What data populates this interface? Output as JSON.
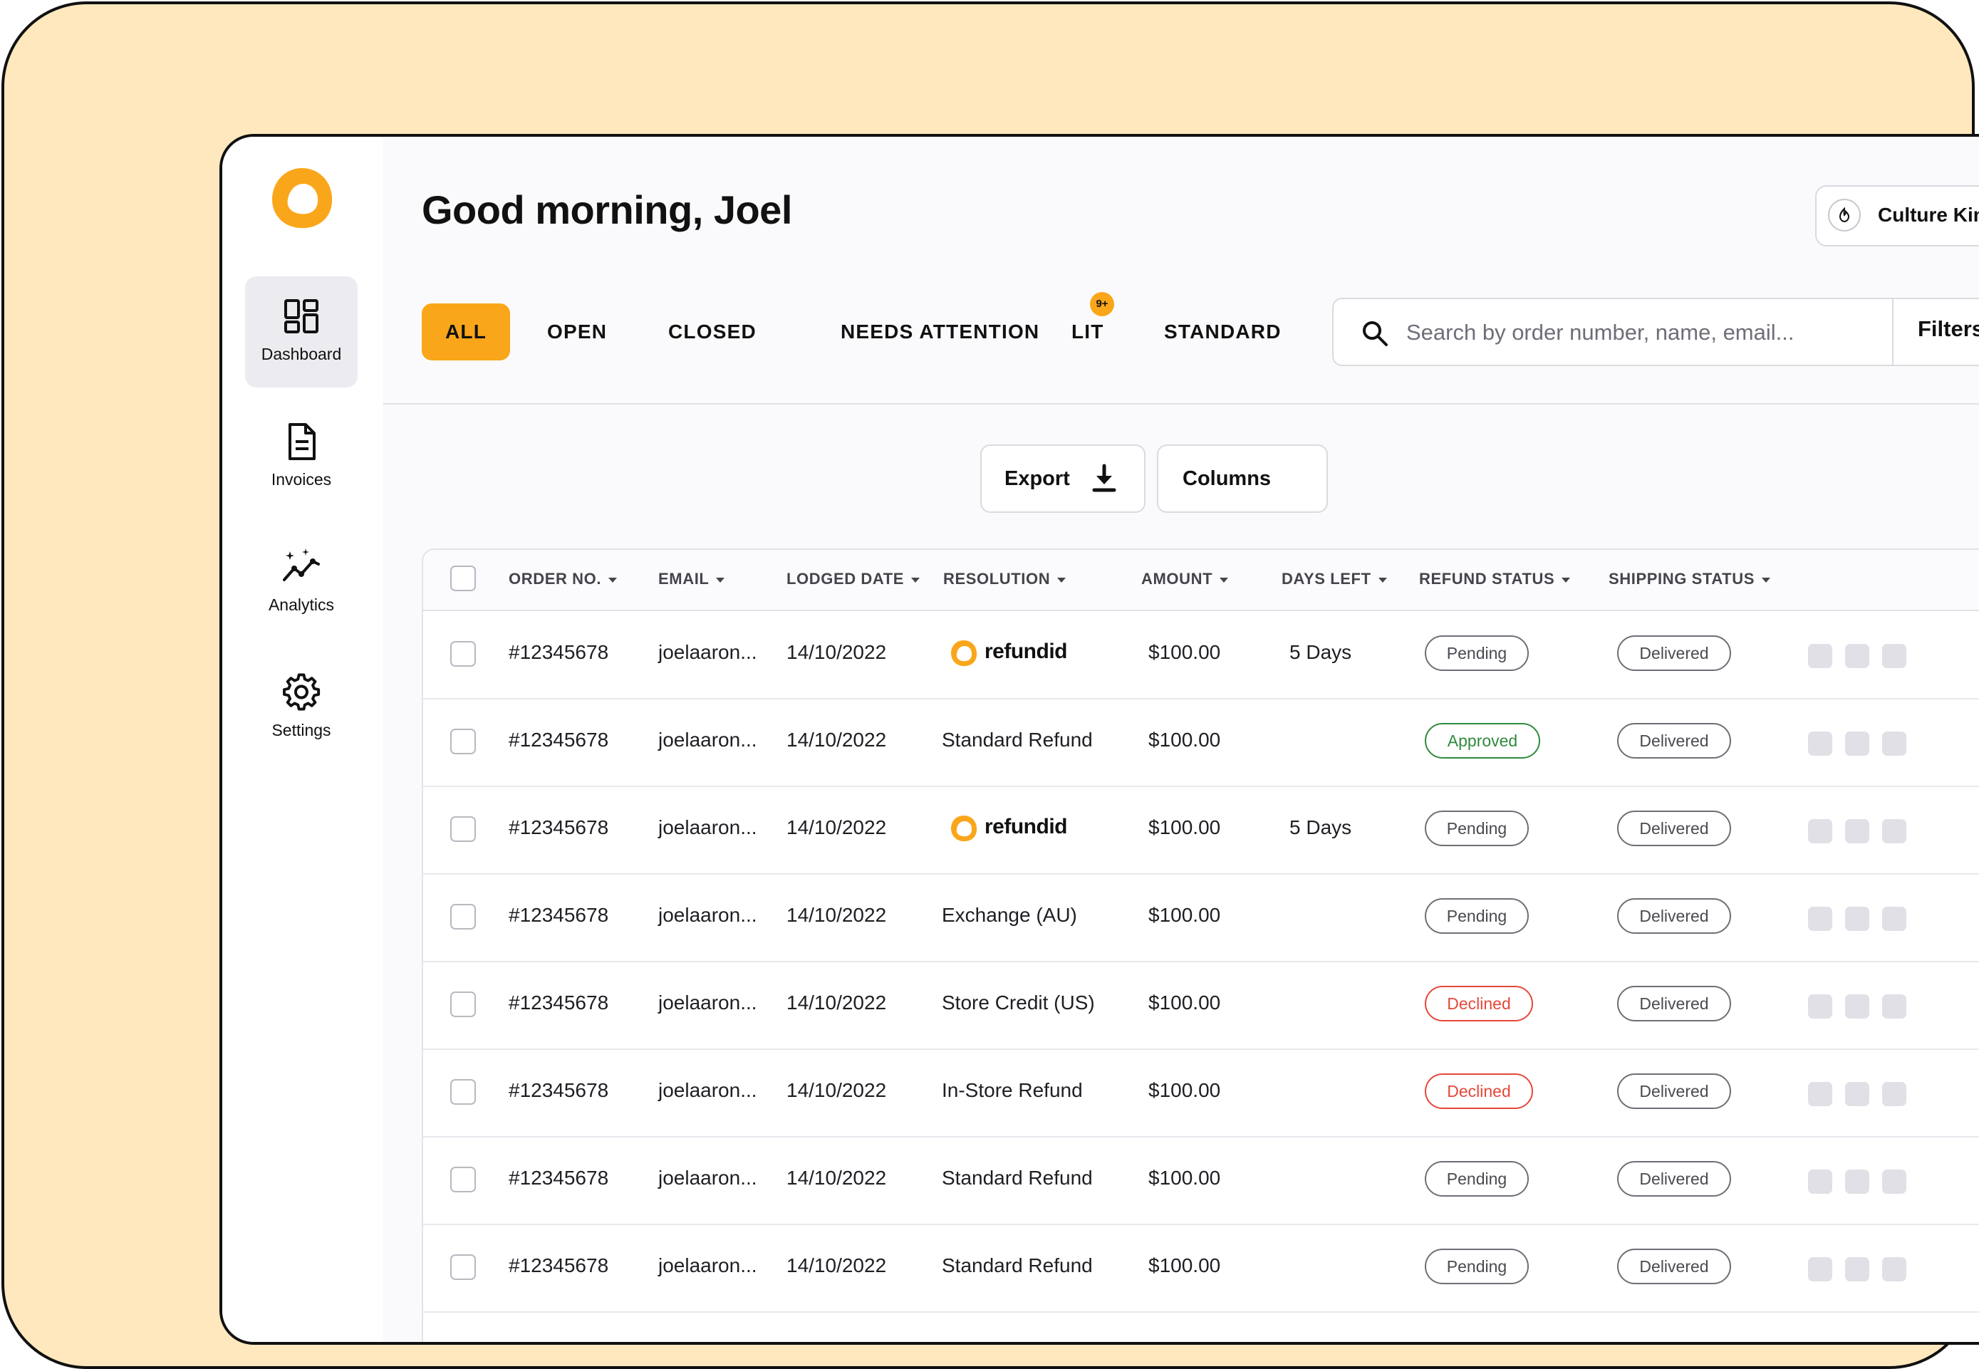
{
  "greeting": "Good morning, Joel",
  "store": {
    "name": "Culture Kin"
  },
  "sidebar": {
    "items": [
      {
        "label": "Dashboard",
        "icon": "dashboard-icon",
        "active": true
      },
      {
        "label": "Invoices",
        "icon": "document-icon",
        "active": false
      },
      {
        "label": "Analytics",
        "icon": "analytics-icon",
        "active": false
      },
      {
        "label": "Settings",
        "icon": "gear-icon",
        "active": false
      }
    ]
  },
  "tabs": [
    {
      "label": "ALL",
      "active": true
    },
    {
      "label": "OPEN"
    },
    {
      "label": "CLOSED"
    },
    {
      "label": "NEEDS ATTENTION"
    },
    {
      "label": "LIT",
      "badge": "9+"
    },
    {
      "label": "STANDARD"
    }
  ],
  "search": {
    "placeholder": "Search by order number, name, email...",
    "filters_label": "Filters"
  },
  "toolbar": {
    "export_label": "Export",
    "columns_label": "Columns"
  },
  "colors": {
    "accent": "#FAA61A",
    "approved": "#2F8A3C",
    "declined": "#E5483A",
    "background": "#FFE8BE"
  },
  "table": {
    "headers": [
      "ORDER NO.",
      "EMAIL",
      "LODGED DATE",
      "RESOLUTION",
      "AMOUNT",
      "DAYS LEFT",
      "REFUND STATUS",
      "SHIPPING STATUS"
    ],
    "rows": [
      {
        "order": "#12345678",
        "email": "joelaaron...",
        "date": "14/10/2022",
        "resolution": "refundid",
        "resolution_is_brand": true,
        "amount": "$100.00",
        "days_left": "5 Days",
        "refund_status": "Pending",
        "shipping_status": "Delivered"
      },
      {
        "order": "#12345678",
        "email": "joelaaron...",
        "date": "14/10/2022",
        "resolution": "Standard Refund",
        "resolution_is_brand": false,
        "amount": "$100.00",
        "days_left": "",
        "refund_status": "Approved",
        "shipping_status": "Delivered"
      },
      {
        "order": "#12345678",
        "email": "joelaaron...",
        "date": "14/10/2022",
        "resolution": "refundid",
        "resolution_is_brand": true,
        "amount": "$100.00",
        "days_left": "5 Days",
        "refund_status": "Pending",
        "shipping_status": "Delivered"
      },
      {
        "order": "#12345678",
        "email": "joelaaron...",
        "date": "14/10/2022",
        "resolution": "Exchange (AU)",
        "resolution_is_brand": false,
        "amount": "$100.00",
        "days_left": "",
        "refund_status": "Pending",
        "shipping_status": "Delivered"
      },
      {
        "order": "#12345678",
        "email": "joelaaron...",
        "date": "14/10/2022",
        "resolution": "Store Credit (US)",
        "resolution_is_brand": false,
        "amount": "$100.00",
        "days_left": "",
        "refund_status": "Declined",
        "shipping_status": "Delivered"
      },
      {
        "order": "#12345678",
        "email": "joelaaron...",
        "date": "14/10/2022",
        "resolution": "In-Store Refund",
        "resolution_is_brand": false,
        "amount": "$100.00",
        "days_left": "",
        "refund_status": "Declined",
        "shipping_status": "Delivered"
      },
      {
        "order": "#12345678",
        "email": "joelaaron...",
        "date": "14/10/2022",
        "resolution": "Standard Refund",
        "resolution_is_brand": false,
        "amount": "$100.00",
        "days_left": "",
        "refund_status": "Pending",
        "shipping_status": "Delivered"
      },
      {
        "order": "#12345678",
        "email": "joelaaron...",
        "date": "14/10/2022",
        "resolution": "Standard Refund",
        "resolution_is_brand": false,
        "amount": "$100.00",
        "days_left": "",
        "refund_status": "Pending",
        "shipping_status": "Delivered"
      }
    ]
  }
}
